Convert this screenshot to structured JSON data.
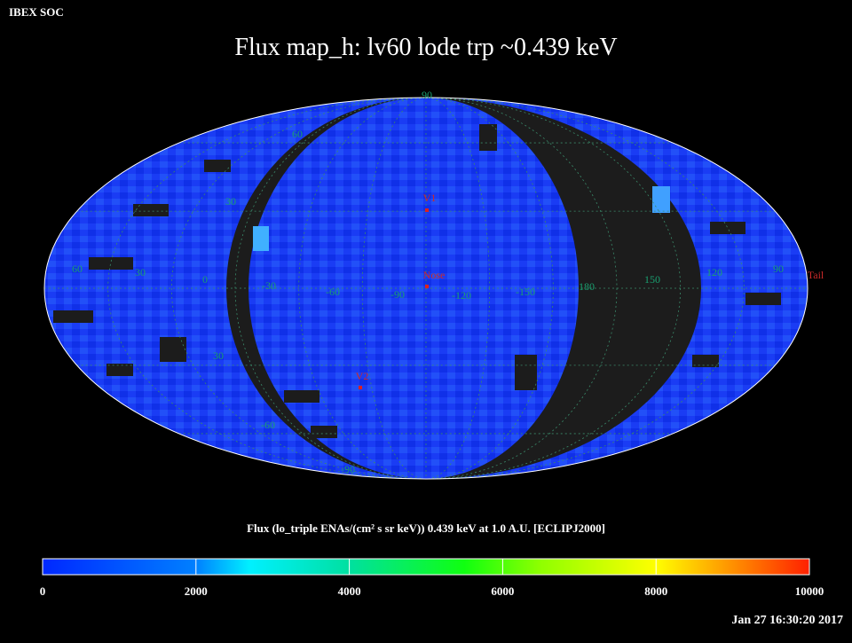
{
  "header": {
    "source": "IBEX SOC",
    "title": "Flux   map_h: lv60 lode trp ~0.439 keV",
    "timestamp": "Jan 27 16:30:20 2017"
  },
  "grid_labels": {
    "longitude": [
      "60",
      "30",
      "0",
      "-30",
      "-60",
      "-90",
      "-120",
      "-150",
      "180",
      "150",
      "120",
      "90"
    ],
    "latitude": [
      "90",
      "60",
      "30",
      "30",
      "-60",
      "-90"
    ]
  },
  "markers": [
    {
      "label": "V1"
    },
    {
      "label": "Nose"
    },
    {
      "label": "V2"
    },
    {
      "label": "Tail"
    }
  ],
  "colorbar": {
    "label": "Flux (lo_triple ENAs/(cm² s sr keV))  0.439 keV at 1.0 A.U. [ECLIPJ2000]",
    "lim": [
      0,
      10000
    ],
    "ticks": [
      0,
      2000,
      4000,
      6000,
      8000,
      10000
    ]
  }
}
